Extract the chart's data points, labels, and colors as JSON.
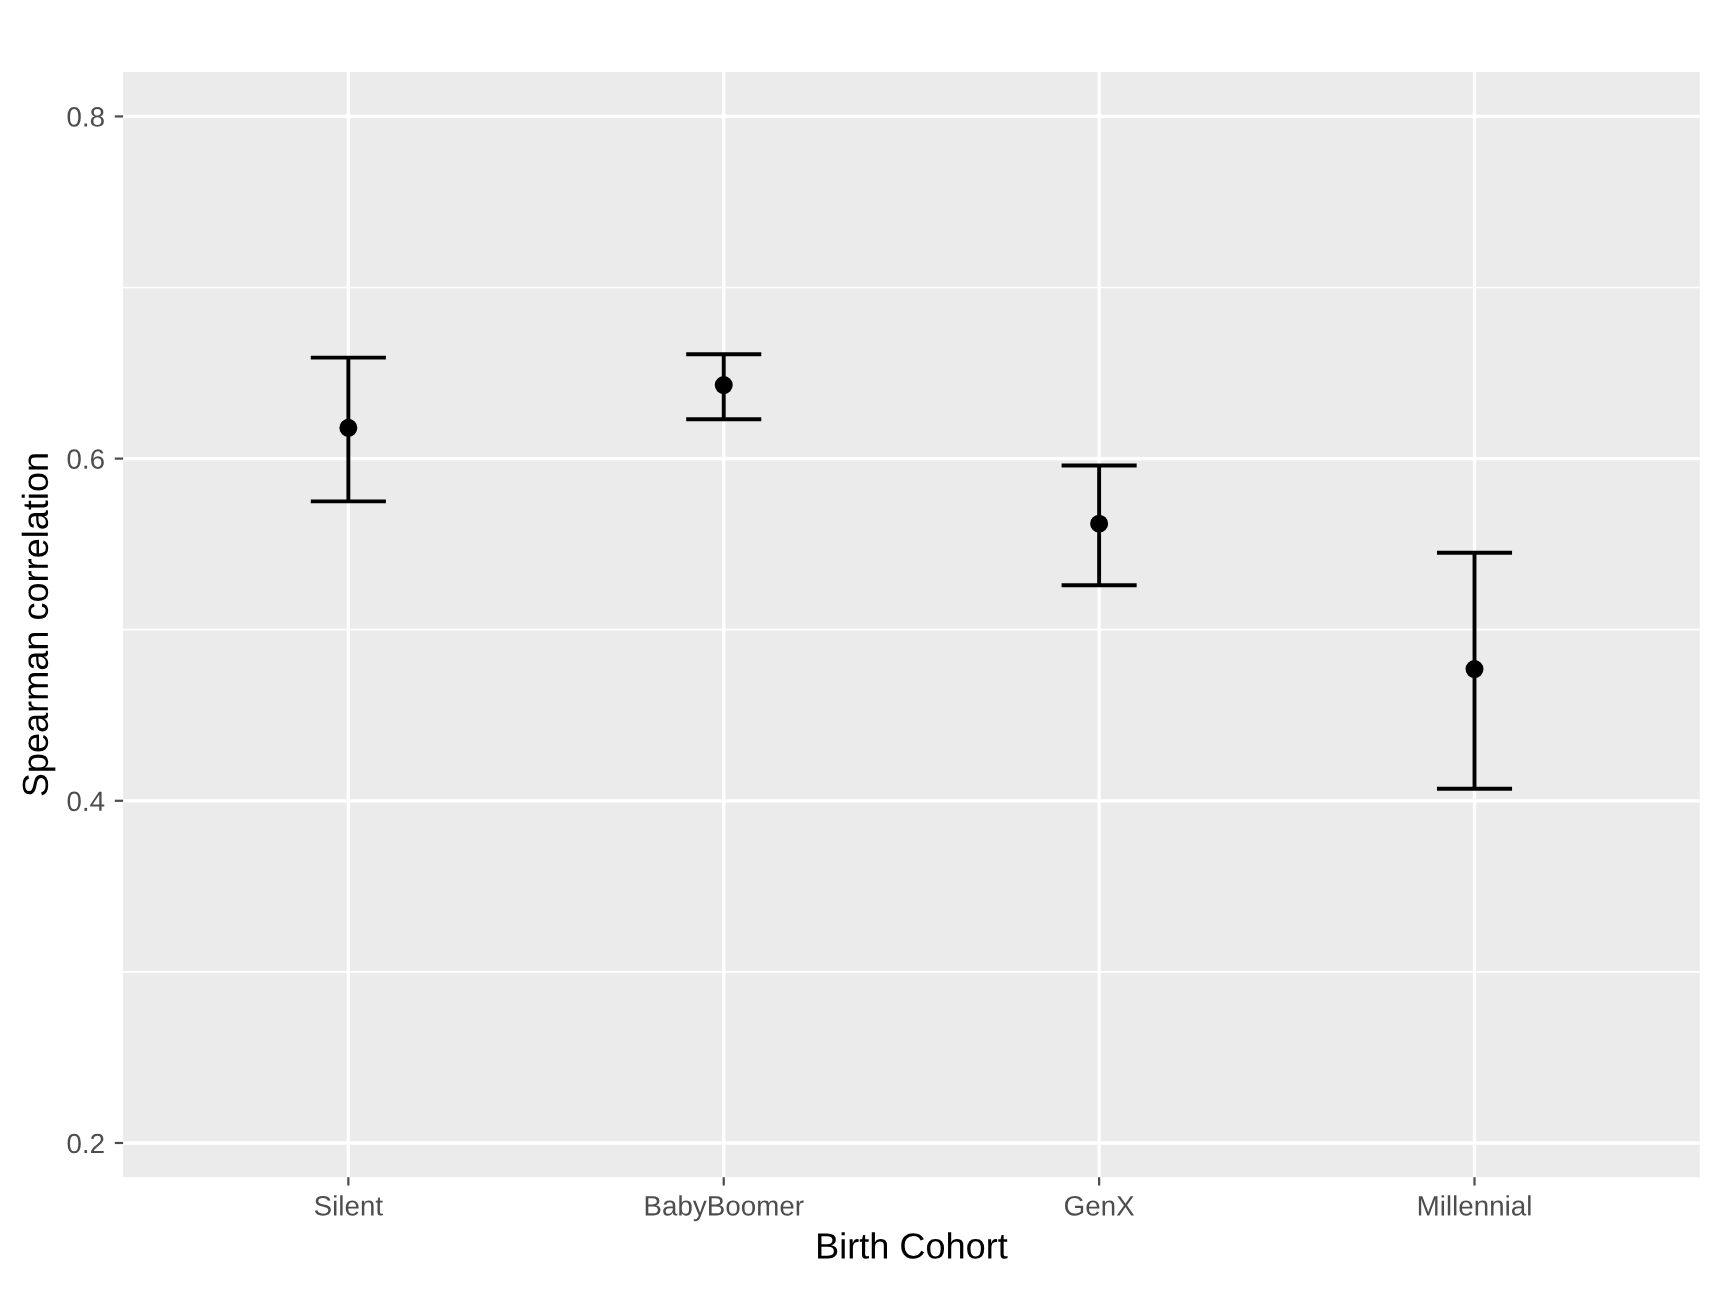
{
  "chart_data": {
    "type": "scatter",
    "xlabel": "Birth Cohort",
    "ylabel": "Spearman correlation",
    "categories": [
      "Silent",
      "BabyBoomer",
      "GenX",
      "Millennial"
    ],
    "values": [
      0.618,
      0.643,
      0.562,
      0.477
    ],
    "errors": [
      [
        0.575,
        0.659
      ],
      [
        0.623,
        0.661
      ],
      [
        0.526,
        0.596
      ],
      [
        0.407,
        0.545
      ]
    ],
    "color": "#000000",
    "marker": "circle",
    "ylim": [
      0.18,
      0.826
    ],
    "yticks": [
      0.2,
      0.4,
      0.6,
      0.8
    ],
    "grid": true
  }
}
